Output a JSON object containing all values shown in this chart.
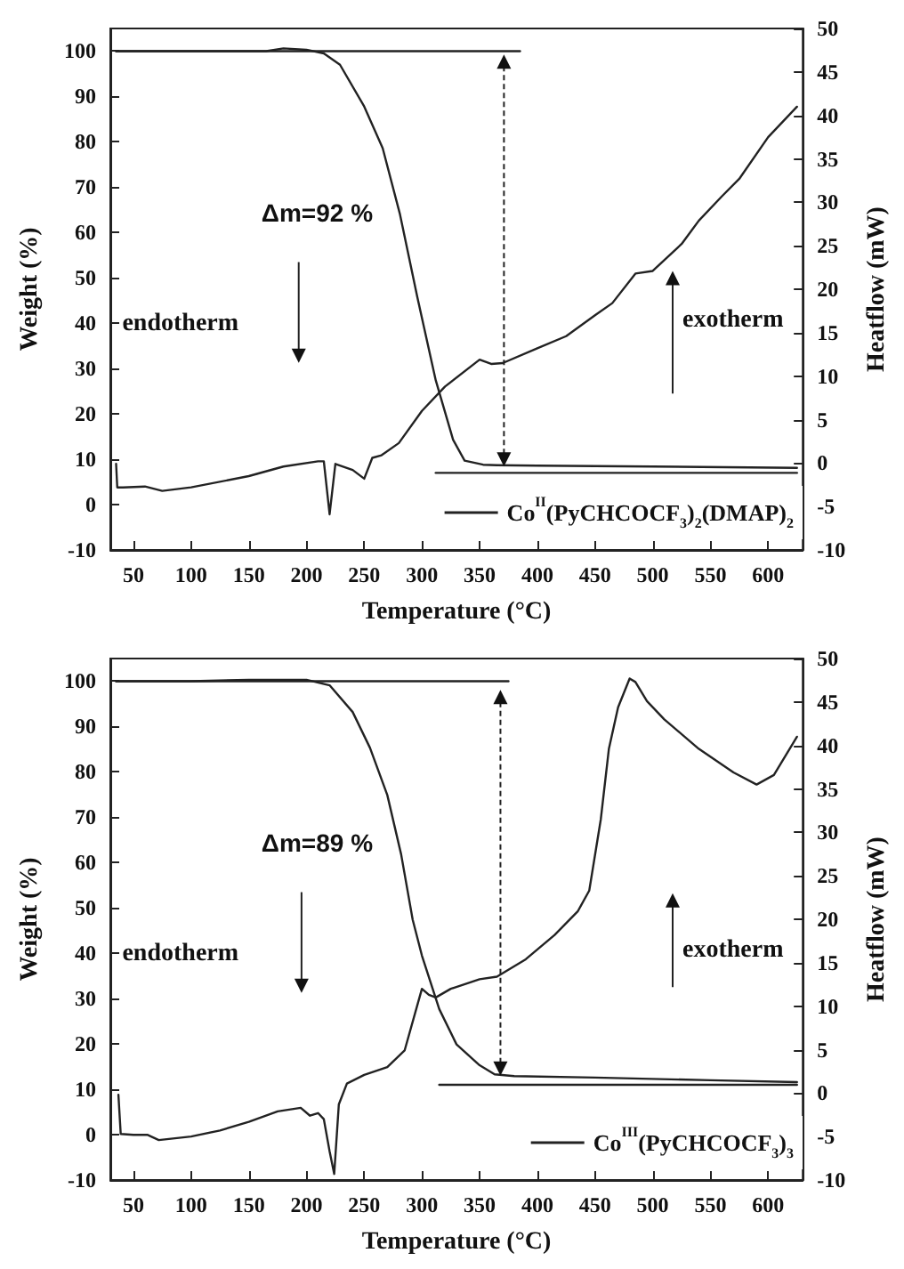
{
  "chart_data": [
    {
      "type": "line",
      "xlabel": "Temperature (°C)",
      "ylabel": "Weight (%)",
      "y2label": "Heatflow (mW)",
      "xlim": [
        30,
        630
      ],
      "xticks": [
        50,
        100,
        150,
        200,
        250,
        300,
        350,
        400,
        450,
        500,
        550,
        600
      ],
      "ylim": [
        -10,
        105
      ],
      "yticks": [
        -10,
        0,
        10,
        20,
        30,
        40,
        50,
        60,
        70,
        80,
        90,
        100
      ],
      "y2lim": [
        -10,
        50
      ],
      "y2ticks": [
        -10,
        -5,
        0,
        5,
        10,
        15,
        20,
        25,
        30,
        35,
        40,
        45,
        50
      ],
      "legend": "bottom right",
      "marker": "none",
      "line_style": "solid",
      "annotations": [
        "Δm=92 %",
        "endotherm",
        "exotherm"
      ],
      "series": [
        {
          "name": "Co$^{II}$(PyCHCOCF$_{3}$)$_{2}$(DMAP)$_{2}$",
          "color": "#222222",
          "x": [
            35,
            100,
            165,
            180,
            200,
            215,
            229,
            250,
            266,
            281,
            296,
            312,
            327,
            337,
            353,
            365,
            400,
            500,
            625
          ],
          "values": [
            100,
            100,
            100,
            100.6,
            100.3,
            99.5,
            97,
            87.8,
            78.6,
            64,
            45.8,
            27.4,
            14.3,
            9.7,
            8.8,
            8.7,
            8.6,
            8.4,
            8.1
          ]
        },
        {
          "axis": "y2",
          "color": "#222222",
          "x": [
            35,
            36,
            41,
            60,
            75,
            100,
            150,
            180,
            210,
            215,
            220,
            225,
            240,
            250,
            257,
            265,
            280,
            300,
            320,
            350,
            360,
            370,
            400,
            425,
            450,
            465,
            485,
            500,
            525,
            540,
            560,
            575,
            600,
            625
          ],
          "values": [
            -0.1,
            -2.8,
            -2.8,
            -2.7,
            -3.2,
            -2.8,
            -1.5,
            -0.4,
            0.2,
            0.2,
            -5.9,
            -0.1,
            -0.8,
            -1.8,
            0.6,
            0.9,
            2.3,
            6.0,
            8.8,
            11.9,
            11.4,
            11.5,
            13.2,
            14.6,
            17.0,
            18.4,
            21.8,
            22.1,
            25.2,
            27.9,
            30.7,
            32.7,
            37.5,
            41.0
          ]
        },
        {
          "color": "#222222",
          "x": [
            35,
            385
          ],
          "values": [
            100,
            100
          ]
        },
        {
          "color": "#222222",
          "x": [
            312,
            625
          ],
          "values": [
            7,
            7
          ]
        }
      ]
    },
    {
      "type": "line",
      "xlabel": "Temperature (°C)",
      "ylabel": "Weight (%)",
      "y2label": "Heatflow (mW)",
      "xlim": [
        30,
        630
      ],
      "xticks": [
        50,
        100,
        150,
        200,
        250,
        300,
        350,
        400,
        450,
        500,
        550,
        600
      ],
      "ylim": [
        -10,
        105
      ],
      "yticks": [
        -10,
        0,
        10,
        20,
        30,
        40,
        50,
        60,
        70,
        80,
        90,
        100
      ],
      "y2lim": [
        -10,
        50
      ],
      "y2ticks": [
        -10,
        -5,
        0,
        5,
        10,
        15,
        20,
        25,
        30,
        35,
        40,
        45,
        50
      ],
      "legend": "bottom right",
      "marker": "none",
      "line_style": "solid",
      "annotations": [
        "Δm=89 %",
        "endotherm",
        "exotherm"
      ],
      "series": [
        {
          "name": "Co$^{III}$(PyCHCOCF$_{3}$)$_{3}$",
          "color": "#222222",
          "x": [
            35,
            100,
            150,
            200,
            220,
            240,
            255,
            270,
            282,
            292,
            300,
            315,
            330,
            350,
            363,
            380,
            450,
            550,
            625
          ],
          "values": [
            100,
            100,
            100.3,
            100.3,
            99.1,
            93.2,
            85.3,
            74.9,
            61.8,
            47.4,
            39.5,
            27.7,
            19.9,
            15.3,
            13.3,
            12.9,
            12.6,
            12,
            11.6
          ]
        },
        {
          "axis": "y2",
          "color": "#222222",
          "x": [
            37,
            39,
            50,
            62,
            72,
            100,
            125,
            150,
            175,
            195,
            203,
            210,
            215,
            220,
            224,
            228,
            235,
            250,
            270,
            285,
            300,
            306,
            312,
            325,
            350,
            365,
            390,
            415,
            435,
            445,
            455,
            462,
            470,
            480,
            485,
            495,
            510,
            540,
            570,
            590,
            605,
            625
          ],
          "values": [
            -0.2,
            -4.7,
            -4.8,
            -4.8,
            -5.4,
            -5.0,
            -4.3,
            -3.3,
            -2.1,
            -1.7,
            -2.6,
            -2.3,
            -3.0,
            -6.7,
            -9.3,
            -1.3,
            1.1,
            2.1,
            3.0,
            4.9,
            12.0,
            11.3,
            11.0,
            12.0,
            13.1,
            13.4,
            15.4,
            18.2,
            20.9,
            23.3,
            31.5,
            39.6,
            44.4,
            47.7,
            47.3,
            45.1,
            43.0,
            39.6,
            36.9,
            35.5,
            36.6,
            41.0
          ]
        },
        {
          "color": "#222222",
          "x": [
            35,
            375
          ],
          "values": [
            100,
            100
          ]
        },
        {
          "color": "#222222",
          "x": [
            315,
            625
          ],
          "values": [
            11,
            11
          ]
        }
      ]
    }
  ]
}
